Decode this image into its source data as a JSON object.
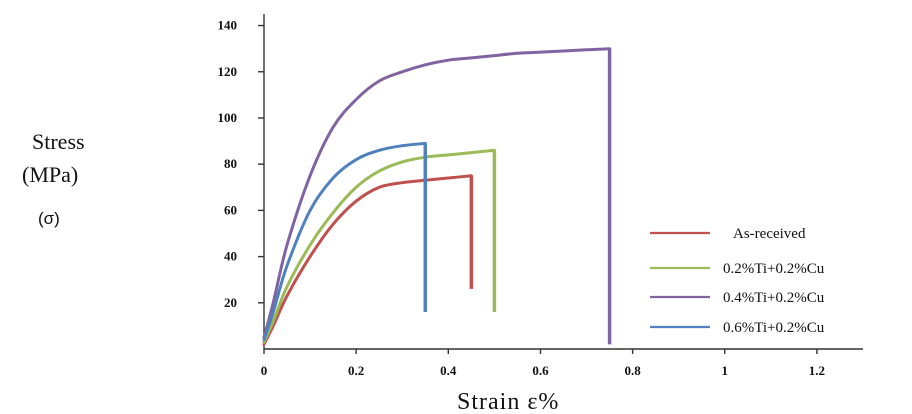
{
  "chart_data": {
    "type": "line",
    "title": "",
    "ylabel_line1": "Stress",
    "ylabel_line2": "(MPa)",
    "ylabel_symbol": "(σ)",
    "xlabel": "Strain  ε%",
    "xlim": [
      0,
      1.3
    ],
    "ylim": [
      0,
      145
    ],
    "x_ticks": [
      {
        "value": 0,
        "label": "0"
      },
      {
        "value": 0.2,
        "label": "0.2"
      },
      {
        "value": 0.4,
        "label": "0.4"
      },
      {
        "value": 0.6,
        "label": "0.6"
      },
      {
        "value": 0.8,
        "label": "0.8"
      },
      {
        "value": 1.0,
        "label": "1"
      },
      {
        "value": 1.2,
        "label": "1.2"
      }
    ],
    "y_ticks": [
      {
        "value": 20,
        "label": "20"
      },
      {
        "value": 40,
        "label": "40"
      },
      {
        "value": 60,
        "label": "60"
      },
      {
        "value": 80,
        "label": "80"
      },
      {
        "value": 100,
        "label": "100"
      },
      {
        "value": 120,
        "label": "120"
      },
      {
        "value": 140,
        "label": "140"
      }
    ],
    "grid": false,
    "legend_position": "bottom-right",
    "series": [
      {
        "name": "As-received",
        "color": "#c0504d",
        "x": [
          0,
          0.02,
          0.05,
          0.1,
          0.15,
          0.2,
          0.25,
          0.3,
          0.35,
          0.4,
          0.45
        ],
        "y": [
          2,
          10,
          23,
          40,
          54,
          64,
          70,
          72,
          73,
          74,
          75
        ],
        "fracture_strain": 0.45,
        "fracture_stress": 26
      },
      {
        "name": "0.2%Ti+0.2%Cu",
        "color": "#9bbb59",
        "x": [
          0,
          0.02,
          0.05,
          0.1,
          0.15,
          0.2,
          0.25,
          0.3,
          0.35,
          0.4,
          0.45,
          0.5
        ],
        "y": [
          3,
          12,
          27,
          45,
          59,
          70,
          77,
          81,
          83,
          84,
          85,
          86
        ],
        "fracture_strain": 0.5,
        "fracture_stress": 16
      },
      {
        "name": "0.4%Ti+0.2%Cu",
        "color": "#8064a2",
        "x": [
          0,
          0.02,
          0.05,
          0.1,
          0.15,
          0.2,
          0.25,
          0.3,
          0.35,
          0.4,
          0.45,
          0.5,
          0.55,
          0.6,
          0.65,
          0.7,
          0.75
        ],
        "y": [
          5,
          20,
          45,
          75,
          96,
          108,
          116,
          120,
          123,
          125,
          126,
          127,
          128,
          128.5,
          129,
          129.5,
          130
        ],
        "fracture_strain": 0.75,
        "fracture_stress": 2
      },
      {
        "name": "0.6%Ti+0.2%Cu",
        "color": "#4f81bd",
        "x": [
          0,
          0.02,
          0.05,
          0.1,
          0.15,
          0.2,
          0.25,
          0.3,
          0.35
        ],
        "y": [
          4,
          16,
          36,
          60,
          74,
          82,
          86,
          88,
          89
        ],
        "fracture_strain": 0.35,
        "fracture_stress": 16
      }
    ]
  }
}
